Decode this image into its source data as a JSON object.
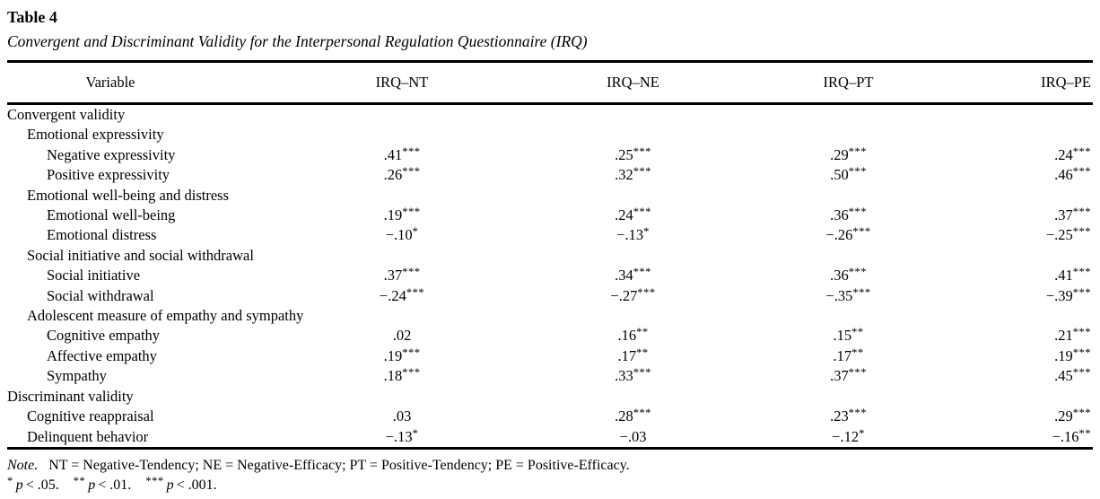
{
  "title": "Table 4",
  "caption": "Convergent and Discriminant Validity for the Interpersonal Regulation Questionnaire (IRQ)",
  "table": {
    "columns": [
      "Variable",
      "IRQ–NT",
      "IRQ–NE",
      "IRQ–PT",
      "IRQ–PE"
    ],
    "rows": [
      {
        "label": "Convergent validity",
        "indent": 0,
        "values": null
      },
      {
        "label": "Emotional expressivity",
        "indent": 1,
        "values": null
      },
      {
        "label": "Negative expressivity",
        "indent": 2,
        "values": [
          {
            "v": ".41",
            "s": "***"
          },
          {
            "v": ".25",
            "s": "***"
          },
          {
            "v": ".29",
            "s": "***"
          },
          {
            "v": ".24",
            "s": "***"
          }
        ]
      },
      {
        "label": "Positive expressivity",
        "indent": 2,
        "values": [
          {
            "v": ".26",
            "s": "***"
          },
          {
            "v": ".32",
            "s": "***"
          },
          {
            "v": ".50",
            "s": "***"
          },
          {
            "v": ".46",
            "s": "***"
          }
        ]
      },
      {
        "label": "Emotional well-being and distress",
        "indent": 1,
        "values": null
      },
      {
        "label": "Emotional well-being",
        "indent": 2,
        "values": [
          {
            "v": ".19",
            "s": "***"
          },
          {
            "v": ".24",
            "s": "***"
          },
          {
            "v": ".36",
            "s": "***"
          },
          {
            "v": ".37",
            "s": "***"
          }
        ]
      },
      {
        "label": "Emotional distress",
        "indent": 2,
        "values": [
          {
            "v": "−.10",
            "s": "*"
          },
          {
            "v": "−.13",
            "s": "*"
          },
          {
            "v": "−.26",
            "s": "***"
          },
          {
            "v": "−.25",
            "s": "***"
          }
        ]
      },
      {
        "label": "Social initiative and social withdrawal",
        "indent": 1,
        "values": null
      },
      {
        "label": "Social initiative",
        "indent": 2,
        "values": [
          {
            "v": ".37",
            "s": "***"
          },
          {
            "v": ".34",
            "s": "***"
          },
          {
            "v": ".36",
            "s": "***"
          },
          {
            "v": ".41",
            "s": "***"
          }
        ]
      },
      {
        "label": "Social withdrawal",
        "indent": 2,
        "values": [
          {
            "v": "−.24",
            "s": "***"
          },
          {
            "v": "−.27",
            "s": "***"
          },
          {
            "v": "−.35",
            "s": "***"
          },
          {
            "v": "−.39",
            "s": "***"
          }
        ]
      },
      {
        "label": "Adolescent measure of empathy and sympathy",
        "indent": 1,
        "values": null
      },
      {
        "label": "Cognitive empathy",
        "indent": 2,
        "values": [
          {
            "v": ".02",
            "s": ""
          },
          {
            "v": ".16",
            "s": "**"
          },
          {
            "v": ".15",
            "s": "**"
          },
          {
            "v": ".21",
            "s": "***"
          }
        ]
      },
      {
        "label": "Affective empathy",
        "indent": 2,
        "values": [
          {
            "v": ".19",
            "s": "***"
          },
          {
            "v": ".17",
            "s": "**"
          },
          {
            "v": ".17",
            "s": "**"
          },
          {
            "v": ".19",
            "s": "***"
          }
        ]
      },
      {
        "label": "Sympathy",
        "indent": 2,
        "values": [
          {
            "v": ".18",
            "s": "***"
          },
          {
            "v": ".33",
            "s": "***"
          },
          {
            "v": ".37",
            "s": "***"
          },
          {
            "v": ".45",
            "s": "***"
          }
        ]
      },
      {
        "label": "Discriminant validity",
        "indent": 0,
        "values": null
      },
      {
        "label": "Cognitive reappraisal",
        "indent": 1,
        "values": [
          {
            "v": ".03",
            "s": ""
          },
          {
            "v": ".28",
            "s": "***"
          },
          {
            "v": ".23",
            "s": "***"
          },
          {
            "v": ".29",
            "s": "***"
          }
        ]
      },
      {
        "label": "Delinquent behavior",
        "indent": 1,
        "values": [
          {
            "v": "−.13",
            "s": "*"
          },
          {
            "v": "−.03",
            "s": ""
          },
          {
            "v": "−.12",
            "s": "*"
          },
          {
            "v": "−.16",
            "s": "**"
          }
        ]
      }
    ]
  },
  "note": {
    "label": "Note.",
    "text": "NT = Negative-Tendency; NE = Negative-Efficacy; PT = Positive-Tendency; PE = Positive-Efficacy.",
    "sig_items": [
      {
        "stars": "*",
        "var": "p",
        "cond": "< .05."
      },
      {
        "stars": "**",
        "var": "p",
        "cond": "< .01."
      },
      {
        "stars": "***",
        "var": "p",
        "cond": "< .001."
      }
    ]
  }
}
